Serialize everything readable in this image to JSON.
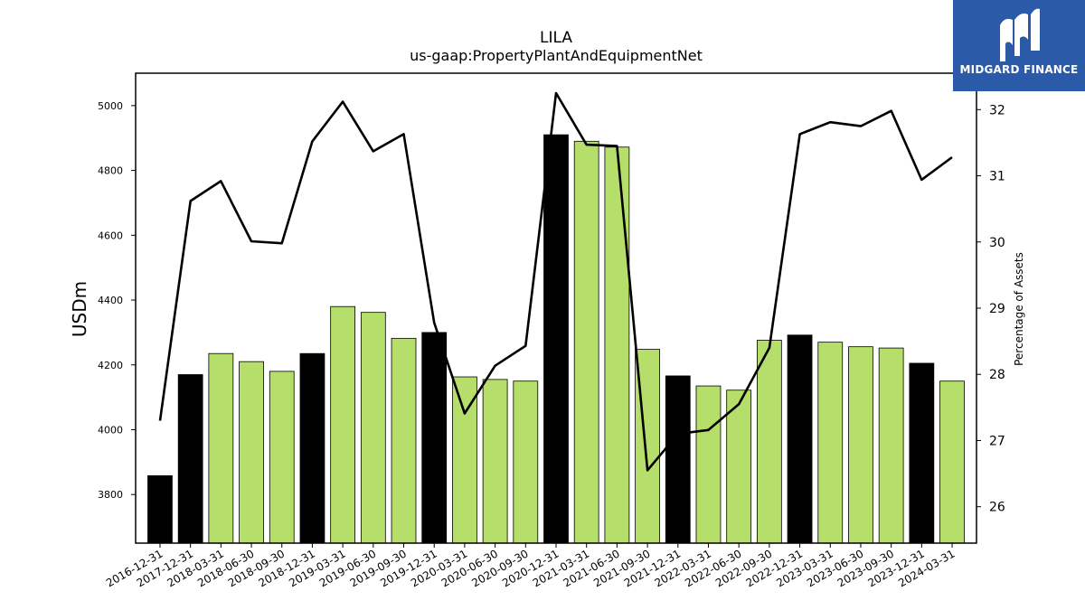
{
  "brand": {
    "name": "MIDGARD FINANCE",
    "color": "#2b5aa8"
  },
  "chart_data": {
    "type": "bar",
    "title": "LILA",
    "subtitle": "us-gaap:PropertyPlantAndEquipmentNet",
    "ylabel": "USDm",
    "y2label": "Percentage of Assets",
    "ylim": [
      3650,
      5100
    ],
    "y2lim": [
      25.45,
      32.55
    ],
    "yticks": [
      3800,
      4000,
      4200,
      4400,
      4600,
      4800,
      5000
    ],
    "y2ticks": [
      26,
      27,
      28,
      29,
      30,
      31,
      32
    ],
    "grid": false,
    "colors": {
      "annual": "#000000",
      "quarterly": "#b5df6a",
      "line": "#000000"
    },
    "categories": [
      "2016-12-31",
      "2017-12-31",
      "2018-03-31",
      "2018-06-30",
      "2018-09-30",
      "2018-12-31",
      "2019-03-31",
      "2019-06-30",
      "2019-09-30",
      "2019-12-31",
      "2020-03-31",
      "2020-06-30",
      "2020-09-30",
      "2020-12-31",
      "2021-03-31",
      "2021-06-30",
      "2021-09-30",
      "2021-12-31",
      "2022-03-31",
      "2022-06-30",
      "2022-09-30",
      "2022-12-31",
      "2023-03-31",
      "2023-06-30",
      "2023-09-30",
      "2023-12-31",
      "2024-03-31"
    ],
    "series": [
      {
        "type": "bar",
        "values": [
          3858,
          4170,
          4235,
          4210,
          4180,
          4235,
          4380,
          4362,
          4282,
          4300,
          4163,
          4155,
          4150,
          4910,
          4890,
          4872,
          4248,
          4166,
          4135,
          4122,
          4276,
          4292,
          4270,
          4256,
          4252,
          4205,
          4150
        ],
        "annual": [
          true,
          true,
          false,
          false,
          false,
          true,
          false,
          false,
          false,
          true,
          false,
          false,
          false,
          true,
          false,
          false,
          false,
          true,
          false,
          false,
          false,
          true,
          false,
          false,
          false,
          true,
          false
        ]
      },
      {
        "type": "line",
        "axis": "right",
        "values": [
          27.3,
          30.62,
          30.92,
          30.01,
          29.98,
          31.52,
          32.12,
          31.37,
          31.63,
          28.78,
          27.41,
          28.13,
          28.43,
          32.25,
          31.47,
          31.45,
          26.55,
          27.1,
          27.16,
          27.55,
          28.4,
          31.63,
          31.81,
          31.75,
          31.98,
          30.94,
          31.28
        ]
      }
    ]
  }
}
